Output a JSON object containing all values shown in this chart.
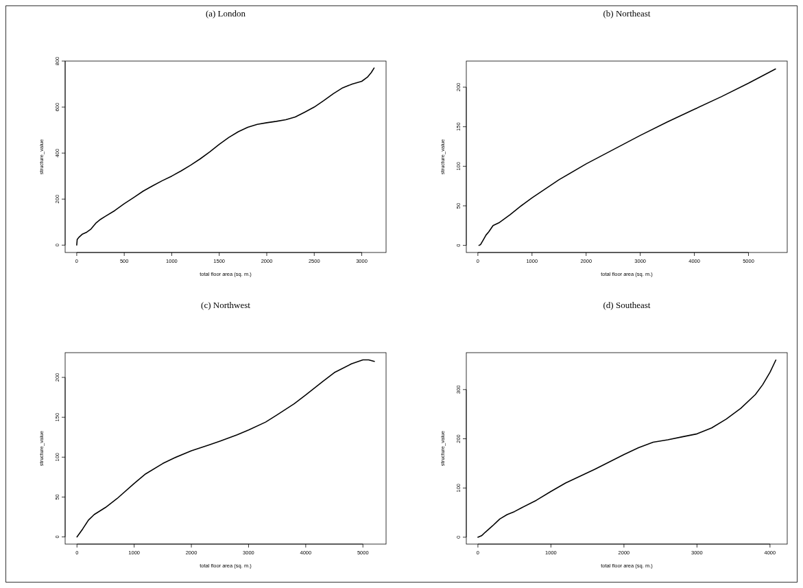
{
  "chart_data": [
    {
      "type": "line",
      "title": "(a) London",
      "xlabel": "total floor area (sq. m.)",
      "ylabel": "structure_value",
      "xlim": [
        -122,
        3256
      ],
      "ylim": [
        -32,
        800
      ],
      "xticks": [
        0,
        500,
        1000,
        1500,
        2000,
        2500,
        3000
      ],
      "yticks": [
        0,
        200,
        400,
        600,
        800
      ],
      "marker": "none",
      "line_style": "solid",
      "series": [
        {
          "color": "#000000",
          "x": [
            0,
            5,
            25,
            60,
            100,
            150,
            200,
            250,
            300,
            400,
            500,
            600,
            700,
            800,
            900,
            1000,
            1100,
            1200,
            1300,
            1400,
            1500,
            1600,
            1700,
            1800,
            1900,
            2000,
            2100,
            2200,
            2300,
            2400,
            2500,
            2600,
            2700,
            2800,
            2900,
            3000,
            3060,
            3100,
            3130
          ],
          "values": [
            0,
            25,
            35,
            48,
            55,
            70,
            95,
            112,
            125,
            150,
            180,
            207,
            235,
            258,
            280,
            300,
            323,
            348,
            375,
            405,
            438,
            468,
            493,
            512,
            525,
            532,
            538,
            545,
            557,
            578,
            600,
            628,
            658,
            684,
            700,
            712,
            730,
            750,
            770
          ]
        }
      ]
    },
    {
      "type": "line",
      "title": "(b) Northeast",
      "xlabel": "total floor area (sq. m.)",
      "ylabel": "structure_value",
      "xlim": [
        -214,
        5716
      ],
      "ylim": [
        -9,
        233
      ],
      "xticks": [
        0,
        1000,
        2000,
        3000,
        4000,
        5000
      ],
      "yticks": [
        0,
        50,
        100,
        150,
        200
      ],
      "marker": "none",
      "line_style": "solid",
      "series": [
        {
          "color": "#000000",
          "x": [
            20,
            50,
            100,
            150,
            200,
            250,
            280,
            400,
            500,
            600,
            800,
            1000,
            1500,
            2000,
            2500,
            3000,
            3500,
            4000,
            4500,
            5000,
            5500
          ],
          "values": [
            0,
            1,
            7,
            13,
            17,
            22,
            25,
            29,
            34,
            39,
            50,
            60,
            83,
            103,
            121,
            139,
            156,
            172,
            188,
            205,
            223
          ]
        }
      ]
    },
    {
      "type": "line",
      "title": "(c) Northwest",
      "xlabel": "total floor area (sq. m.)",
      "ylabel": "structure_value",
      "xlim": [
        -207,
        5405
      ],
      "ylim": [
        -9,
        231
      ],
      "xticks": [
        0,
        1000,
        2000,
        3000,
        4000,
        5000
      ],
      "yticks": [
        0,
        50,
        100,
        150,
        200
      ],
      "marker": "none",
      "line_style": "solid",
      "series": [
        {
          "color": "#000000",
          "x": [
            0,
            20,
            100,
            200,
            300,
            500,
            700,
            1000,
            1200,
            1500,
            1700,
            2000,
            2300,
            2500,
            2800,
            3000,
            3300,
            3500,
            3800,
            4000,
            4300,
            4500,
            4800,
            5000,
            5100,
            5200
          ],
          "values": [
            0,
            2,
            10,
            21,
            28,
            37,
            48,
            67,
            79,
            92,
            99,
            108,
            115,
            120,
            128,
            134,
            144,
            153,
            167,
            178,
            195,
            206,
            217,
            222,
            222,
            220
          ]
        }
      ]
    },
    {
      "type": "line",
      "title": "(d) Southeast",
      "xlabel": "total floor area (sq. m.)",
      "ylabel": "structure_value",
      "xlim": [
        -159,
        4236
      ],
      "ylim": [
        -14,
        375
      ],
      "xticks": [
        0,
        1000,
        2000,
        3000,
        4000
      ],
      "yticks": [
        0,
        100,
        200,
        300
      ],
      "marker": "none",
      "line_style": "solid",
      "series": [
        {
          "color": "#000000",
          "x": [
            0,
            50,
            100,
            200,
            300,
            400,
            500,
            600,
            800,
            1000,
            1200,
            1400,
            1600,
            1800,
            2000,
            2200,
            2400,
            2600,
            2800,
            3000,
            3200,
            3400,
            3600,
            3800,
            3900,
            4000,
            4080
          ],
          "values": [
            0,
            3,
            10,
            23,
            37,
            46,
            52,
            60,
            75,
            93,
            110,
            124,
            138,
            153,
            168,
            182,
            193,
            198,
            204,
            210,
            222,
            240,
            262,
            290,
            310,
            335,
            360
          ]
        }
      ]
    }
  ]
}
